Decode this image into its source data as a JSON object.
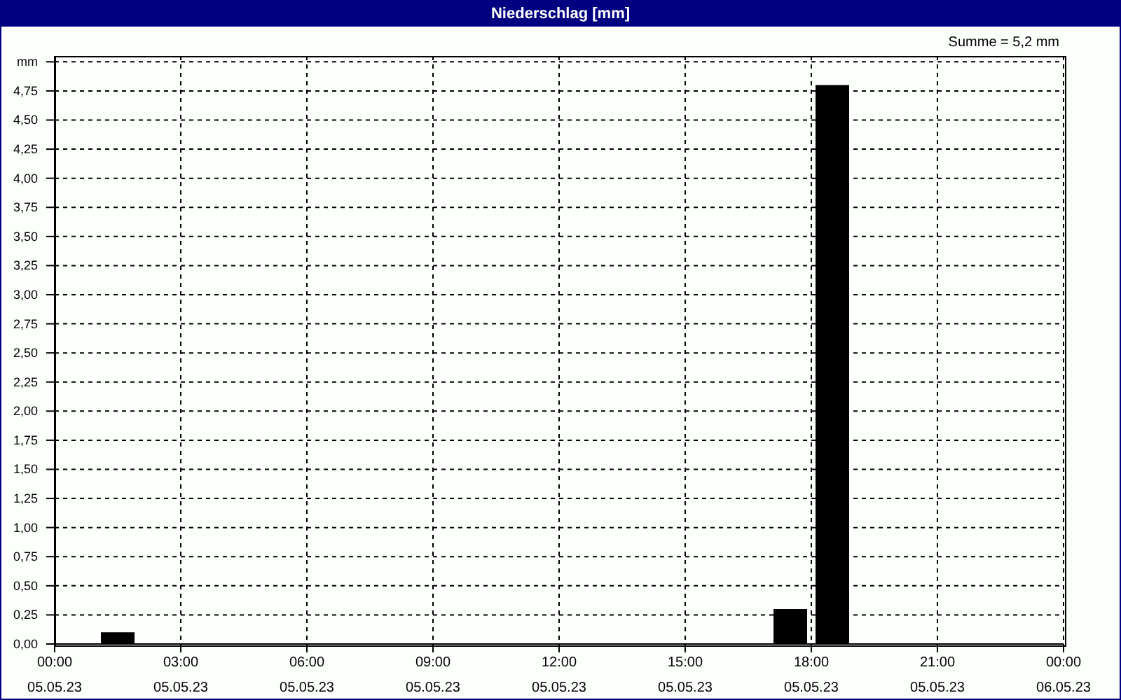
{
  "chart_data": {
    "type": "bar",
    "title": "Niederschlag [mm]",
    "annotations": [
      "Summe = 5,2 mm"
    ],
    "x": [
      "--05-05T01:30",
      "--05-05T17:30",
      "--05-05T18:30"
    ],
    "values": [
      0.1,
      0.3,
      4.8
    ],
    "color": "#000000",
    "xlim": [
      "--05-05T00:00",
      "--05-06T00:00"
    ],
    "xticks": [
      {
        "value": "--05-05T00:00",
        "label": "00:00 05.05.23"
      },
      {
        "value": "--05-05T03:00",
        "label": "03:00 05.05.23"
      },
      {
        "value": "--05-05T06:00",
        "label": "06:00 05.05.23"
      },
      {
        "value": "--05-05T09:00",
        "label": "09:00 05.05.23"
      },
      {
        "value": "--05-05T12:00",
        "label": "12:00 05.05.23"
      },
      {
        "value": "--05-05T15:00",
        "label": "15:00 05.05.23"
      },
      {
        "value": "--05-05T18:00",
        "label": "18:00 05.05.23"
      },
      {
        "value": "--05-05T21:00",
        "label": "21:00 05.05.23"
      },
      {
        "value": "--05-06T00:00",
        "label": "00:00 06.05.23"
      }
    ],
    "ylim": [
      0,
      5.05
    ],
    "yticks": [
      {
        "value": 0,
        "label": "0,00"
      },
      {
        "value": 0.25,
        "label": "0,25"
      },
      {
        "value": 0.5,
        "label": "0,50"
      },
      {
        "value": 0.75,
        "label": "0,75"
      },
      {
        "value": 1,
        "label": "1,00"
      },
      {
        "value": 1.25,
        "label": "1,25"
      },
      {
        "value": 1.5,
        "label": "1,50"
      },
      {
        "value": 1.75,
        "label": "1,75"
      },
      {
        "value": 2,
        "label": "2,00"
      },
      {
        "value": 2.25,
        "label": "2,25"
      },
      {
        "value": 2.5,
        "label": "2,50"
      },
      {
        "value": 2.75,
        "label": "2,75"
      },
      {
        "value": 3,
        "label": "3,00"
      },
      {
        "value": 3.25,
        "label": "3,25"
      },
      {
        "value": 3.5,
        "label": "3,50"
      },
      {
        "value": 3.75,
        "label": "3,75"
      },
      {
        "value": 4,
        "label": "4,00"
      },
      {
        "value": 4.25,
        "label": "4,25"
      },
      {
        "value": 4.5,
        "label": "4,50"
      },
      {
        "value": 4.75,
        "label": "4,75"
      },
      {
        "value": 5,
        "label": "mm"
      }
    ],
    "grid": true
  }
}
